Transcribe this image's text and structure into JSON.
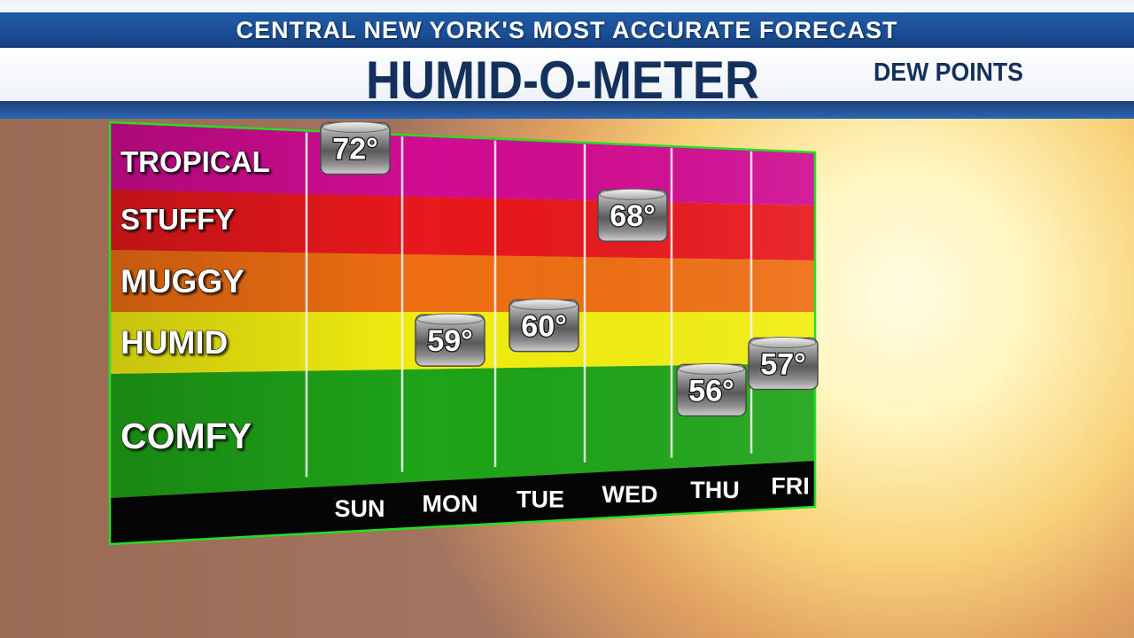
{
  "header": {
    "strap": "CENTRAL NEW YORK'S MOST ACCURATE FORECAST",
    "title": "HUMID-O-METER",
    "subtitle": "DEW POINTS"
  },
  "chart_data": {
    "type": "bar",
    "title": "HUMID-O-METER",
    "subtitle": "DEW POINTS",
    "categories": [
      "SUN",
      "MON",
      "TUE",
      "WED",
      "THU",
      "FRI"
    ],
    "values": [
      72,
      59,
      60,
      68,
      56,
      57
    ],
    "value_labels": [
      "72°",
      "59°",
      "60°",
      "68°",
      "56°",
      "57°"
    ],
    "bands": [
      {
        "label": "TROPICAL",
        "color": "#d10c92"
      },
      {
        "label": "STUFFY",
        "color": "#e8181c"
      },
      {
        "label": "MUGGY",
        "color": "#ef6e12"
      },
      {
        "label": "HUMID",
        "color": "#f2ee10"
      },
      {
        "label": "COMFY",
        "color": "#1ea418"
      }
    ],
    "grid": true
  }
}
